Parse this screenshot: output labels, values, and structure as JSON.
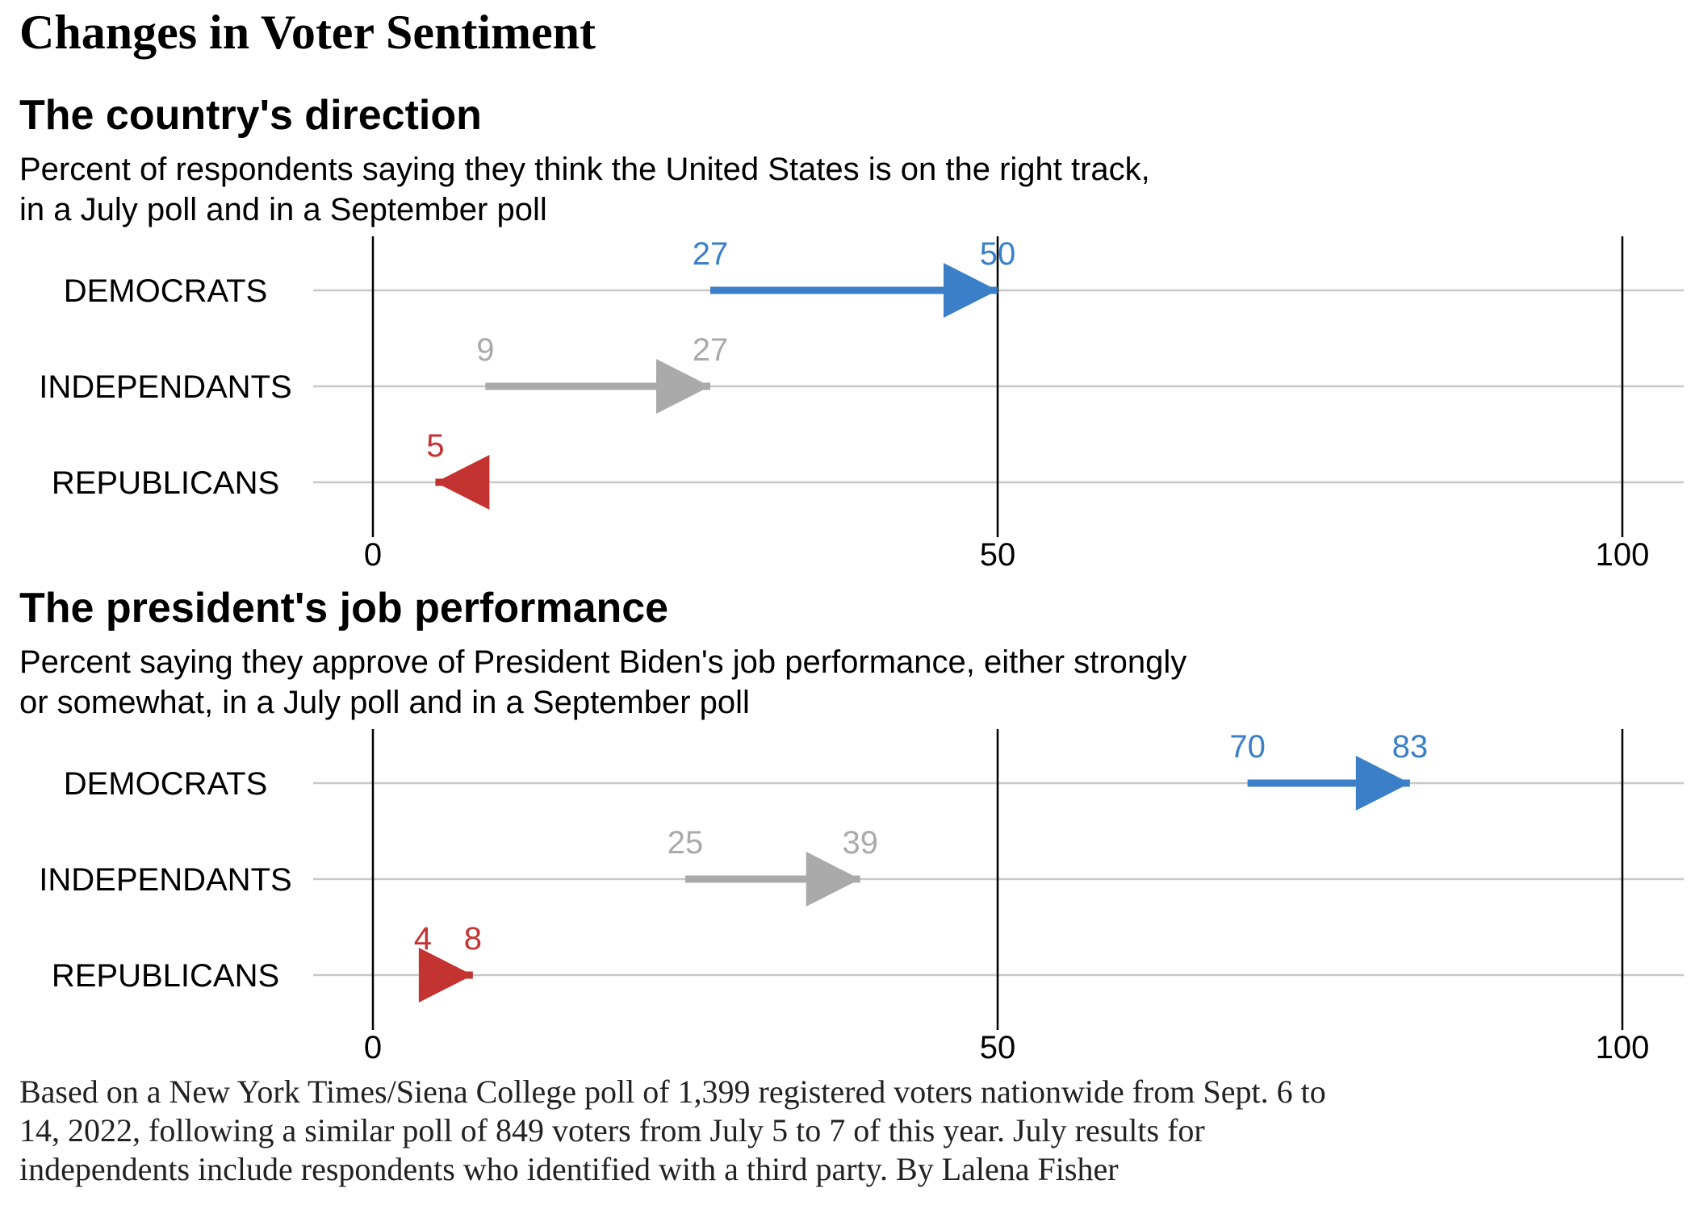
{
  "title": "Changes in Voter Sentiment",
  "colors": {
    "democrats": "#3a7fc8",
    "independents": "#aaaaaa",
    "republicans": "#c33332",
    "gridline": "#c8c8c8",
    "ref_line": "#000000"
  },
  "caption_lines": [
    "Based on a New York Times/Siena College poll of 1,399 registered voters nationwide from Sept. 6 to",
    "14, 2022, following a similar poll of 849 voters from July 5 to 7 of this year. July results for",
    "independents include respondents who identified with a third party. By Lalena Fisher"
  ],
  "chart_data": [
    {
      "type": "arrow-dumbbell",
      "title": "The country's direction",
      "subtitle_lines": [
        "Percent of respondents saying they think the United States is on the right track,",
        "in a July poll and in a September poll"
      ],
      "xlim": [
        0,
        100
      ],
      "x_ticks": [
        0,
        50,
        100
      ],
      "series": [
        {
          "group": "DEMOCRATS",
          "color_key": "democrats",
          "july": 27,
          "september": 50,
          "labels": [
            "27",
            "50"
          ]
        },
        {
          "group": "INDEPENDANTS",
          "color_key": "independents",
          "july": 9,
          "september": 27,
          "labels": [
            "9",
            "27"
          ]
        },
        {
          "group": "REPUBLICANS",
          "color_key": "republicans",
          "july": 9,
          "september": 5,
          "labels": [
            "5"
          ]
        }
      ]
    },
    {
      "type": "arrow-dumbbell",
      "title": "The president's job performance",
      "subtitle_lines": [
        "Percent saying they approve of President Biden's job performance, either strongly",
        "or somewhat, in a July poll and in a September poll"
      ],
      "xlim": [
        0,
        100
      ],
      "x_ticks": [
        0,
        50,
        100
      ],
      "series": [
        {
          "group": "DEMOCRATS",
          "color_key": "democrats",
          "july": 70,
          "september": 83,
          "labels": [
            "70",
            "83"
          ]
        },
        {
          "group": "INDEPENDANTS",
          "color_key": "independents",
          "july": 25,
          "september": 39,
          "labels": [
            "25",
            "39"
          ]
        },
        {
          "group": "REPUBLICANS",
          "color_key": "republicans",
          "july": 4,
          "september": 8,
          "labels": [
            "4",
            "8"
          ]
        }
      ]
    }
  ]
}
